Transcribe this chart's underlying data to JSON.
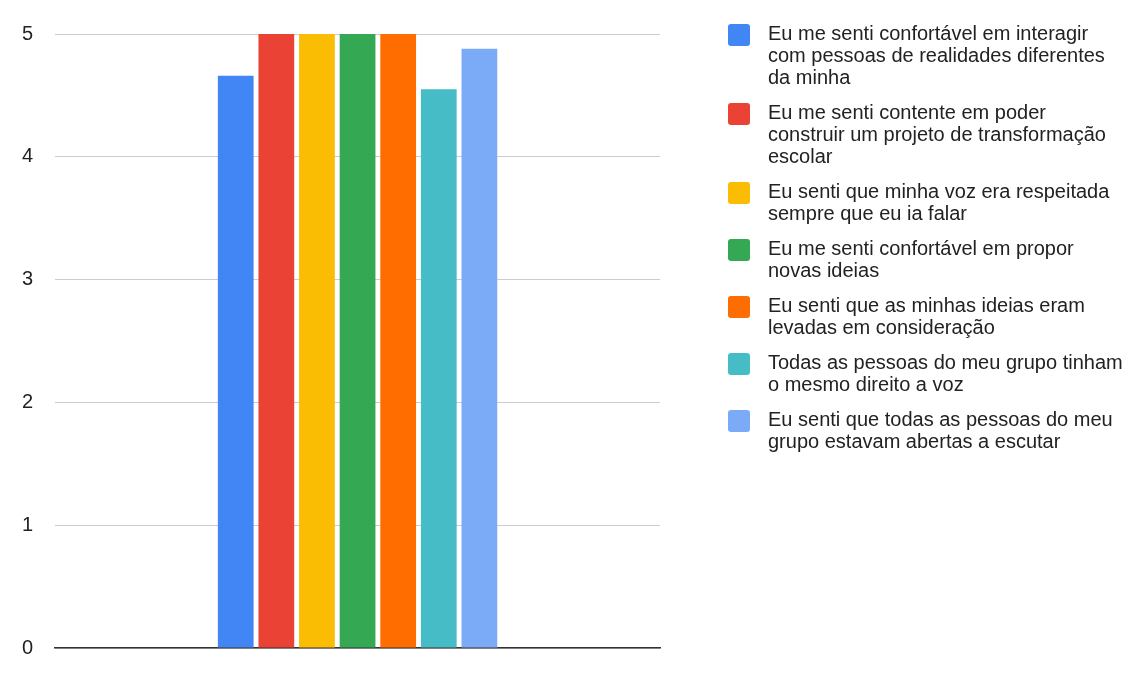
{
  "chart_data": {
    "type": "bar",
    "categories": [
      null
    ],
    "series": [
      {
        "name": "Eu me senti confortável em interagir com pessoas de realidades diferentes da minha",
        "color": "#4285f4",
        "values": [
          4.66
        ]
      },
      {
        "name": "Eu me senti contente em poder construir um projeto de transformação escolar",
        "color": "#ea4335",
        "values": [
          5
        ]
      },
      {
        "name": "Eu senti que minha voz era respeitada sempre que eu ia falar",
        "color": "#fbbc04",
        "values": [
          5
        ]
      },
      {
        "name": "Eu me senti confortável em propor novas ideias",
        "color": "#34a853",
        "values": [
          5
        ]
      },
      {
        "name": "Eu senti que as minhas ideias eram levadas em consideração",
        "color": "#ff6d01",
        "values": [
          5
        ]
      },
      {
        "name": "Todas as pessoas do meu grupo tinham o mesmo direito a voz",
        "color": "#46bdc6",
        "values": [
          4.55
        ]
      },
      {
        "name": "Eu senti que todas as pessoas do meu grupo estavam abertas a escutar",
        "color": "#7baaf7",
        "values": [
          4.88
        ]
      }
    ],
    "ylim": [
      0,
      5
    ],
    "yticks": [
      0,
      1,
      2,
      3,
      4,
      5
    ],
    "grid": "y",
    "legend": "right"
  }
}
